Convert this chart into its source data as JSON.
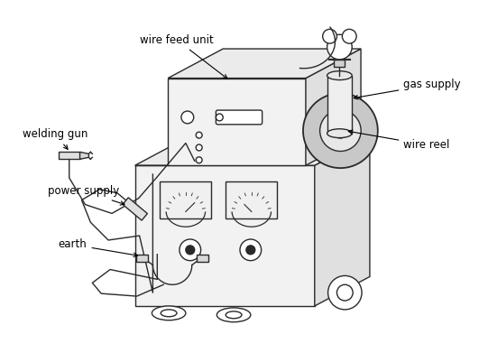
{
  "background_color": "#ffffff",
  "line_color": "#2a2a2a",
  "label_color": "#000000",
  "labels": {
    "wire_feed_unit": "wire feed unit",
    "welding_gun": "welding gun",
    "gas_supply": "gas supply",
    "wire_reel": "wire reel",
    "power_supply": "power supply",
    "earth": "earth"
  },
  "font_size": 8.5
}
